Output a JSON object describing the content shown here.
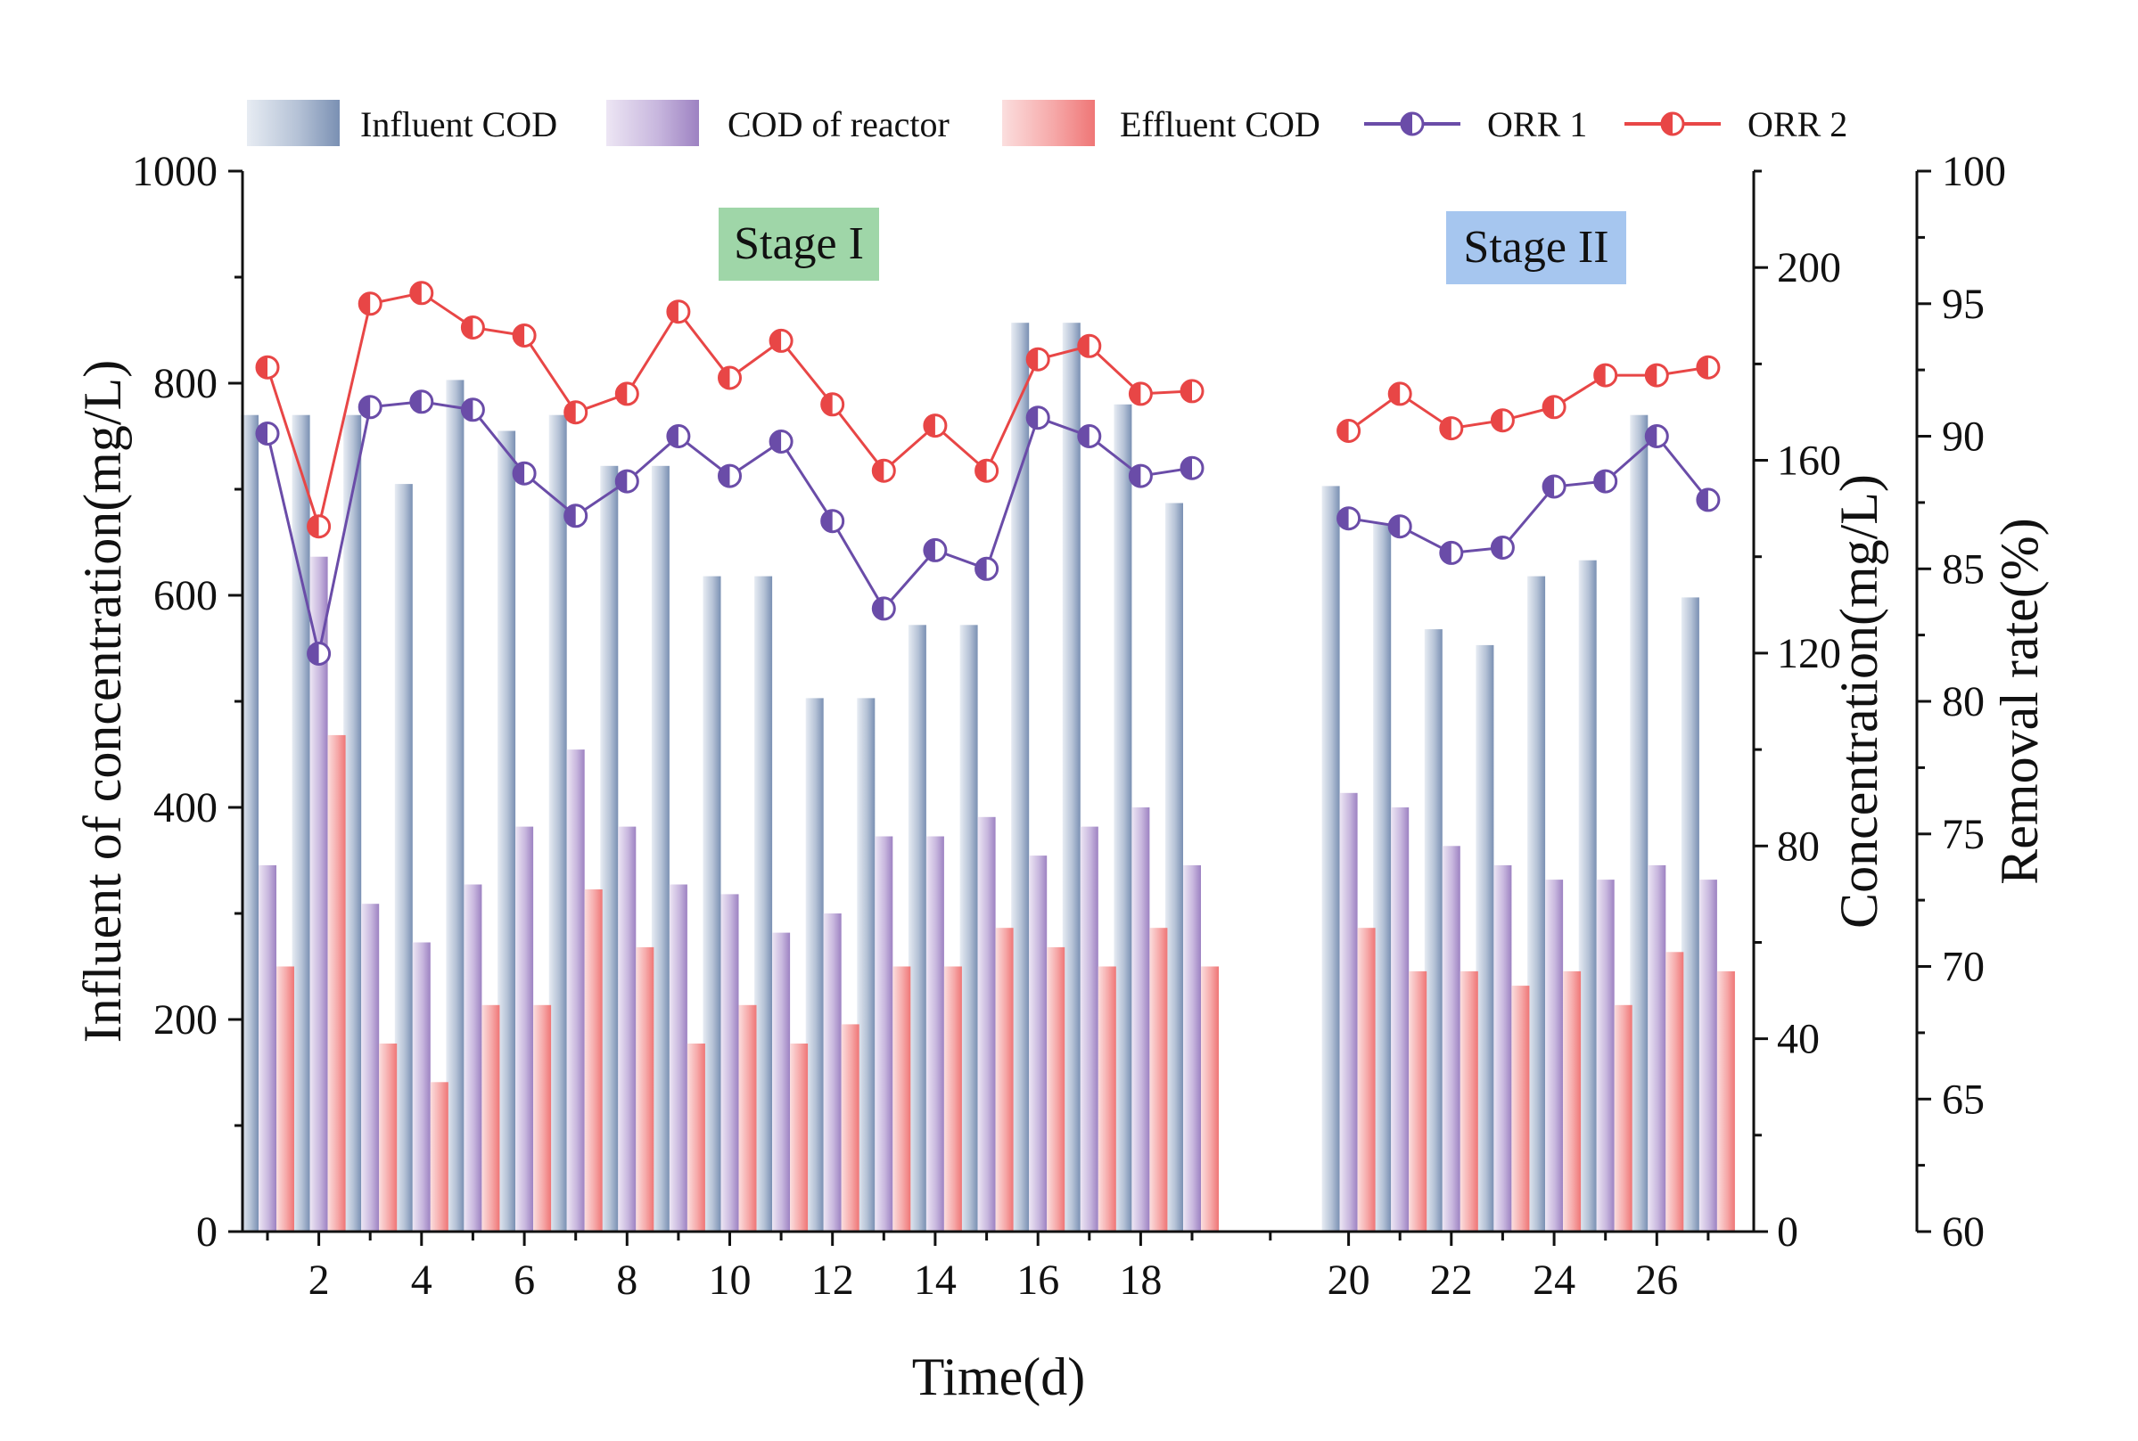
{
  "chart_data": {
    "type": "bar+line",
    "xlabel": "Time(d)",
    "ylabel_left": "Influent of concentration(mg/L)",
    "ylabel_mid": "Concentration(mg/L)",
    "ylabel_right": "Removal rate(%)",
    "x_tick_labels": [
      "2",
      "4",
      "6",
      "8",
      "10",
      "12",
      "14",
      "16",
      "18",
      "20",
      "22",
      "24",
      "26"
    ],
    "y_left": {
      "range": [
        0,
        1000
      ],
      "ticks": [
        "0",
        "200",
        "400",
        "600",
        "800",
        "1000"
      ]
    },
    "y_mid": {
      "range": [
        0,
        220
      ],
      "ticks": [
        "0",
        "40",
        "80",
        "120",
        "160",
        "200"
      ]
    },
    "y_right": {
      "range": [
        60,
        100
      ],
      "ticks": [
        "60",
        "65",
        "70",
        "75",
        "80",
        "85",
        "90",
        "95",
        "100"
      ]
    },
    "stage_labels": [
      "Stage I",
      "Stage II"
    ],
    "days": [
      1,
      2,
      3,
      4,
      5,
      6,
      7,
      8,
      9,
      10,
      11,
      12,
      13,
      14,
      15,
      16,
      17,
      18,
      19,
      20,
      21,
      22,
      23,
      24,
      25,
      26,
      27
    ],
    "series": [
      {
        "name": "Influent COD",
        "kind": "bar",
        "axis": "left",
        "values": [
          770,
          770,
          770,
          705,
          803,
          755,
          770,
          722,
          722,
          618,
          618,
          503,
          503,
          572,
          572,
          857,
          857,
          780,
          687,
          703,
          668,
          568,
          553,
          618,
          633,
          770,
          598
        ]
      },
      {
        "name": "COD of reactor",
        "kind": "bar",
        "axis": "mid",
        "values": [
          76,
          140,
          68,
          60,
          72,
          84,
          100,
          84,
          72,
          70,
          62,
          66,
          82,
          82,
          86,
          78,
          84,
          88,
          76,
          91,
          88,
          80,
          76,
          73,
          73,
          76,
          73
        ]
      },
      {
        "name": "Effluent COD",
        "kind": "bar",
        "axis": "mid",
        "values": [
          55,
          103,
          39,
          31,
          47,
          47,
          71,
          59,
          39,
          47,
          39,
          43,
          55,
          55,
          63,
          59,
          55,
          63,
          55,
          63,
          54,
          54,
          51,
          54,
          47,
          58,
          54
        ]
      },
      {
        "name": "ORR 1",
        "kind": "line",
        "axis": "right",
        "values": [
          90.1,
          81.8,
          91.1,
          91.3,
          91.0,
          88.6,
          87.0,
          88.3,
          90.0,
          88.5,
          89.8,
          86.8,
          83.5,
          85.7,
          85.0,
          90.7,
          90.0,
          88.5,
          88.8,
          86.9,
          86.6,
          85.6,
          85.8,
          88.1,
          88.3,
          90.0,
          87.6
        ]
      },
      {
        "name": "ORR 2",
        "kind": "line",
        "axis": "right",
        "values": [
          92.6,
          86.6,
          95.0,
          95.4,
          94.1,
          93.8,
          90.9,
          91.6,
          94.7,
          92.2,
          93.6,
          91.2,
          88.7,
          90.4,
          88.7,
          92.9,
          93.4,
          91.6,
          91.7,
          90.2,
          91.6,
          90.3,
          90.6,
          91.1,
          92.3,
          92.3,
          92.6
        ]
      }
    ]
  },
  "colors": {
    "influent_light": "#e6ebf2",
    "influent_dark": "#7d92b5",
    "reactor_light": "#ece5f3",
    "reactor_dark": "#a58bc7",
    "effluent_light": "#fad8d8",
    "effluent_dark": "#f07c7c",
    "orr1": "#6a4ca8",
    "orr2": "#e84646",
    "stage1_bg": "#9fd6a8",
    "stage2_bg": "#a6c6ef"
  }
}
